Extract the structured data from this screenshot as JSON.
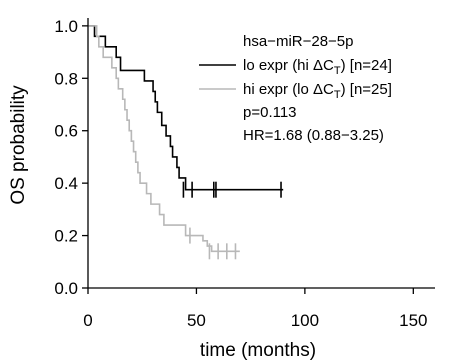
{
  "chart_data": {
    "type": "line",
    "subtype": "kaplan-meier",
    "xlabel": "time (months)",
    "ylabel": "OS probability",
    "xlim": [
      0,
      160
    ],
    "ylim": [
      0,
      1.03
    ],
    "x_ticks": [
      0,
      50,
      100,
      150
    ],
    "y_ticks": [
      0.0,
      0.2,
      0.4,
      0.6,
      0.8,
      1.0
    ],
    "x_tick_labels": [
      "0",
      "50",
      "100",
      "150"
    ],
    "y_tick_labels": [
      "0.0",
      "0.2",
      "0.4",
      "0.6",
      "0.8",
      "1.0"
    ],
    "grid": false,
    "legend_position": "top-right",
    "legend": {
      "title": "hsa−miR−28−5p",
      "entries": [
        {
          "prefix": "lo expr (hi ΔC",
          "sub": "T",
          "suffix": ") [n=24]"
        },
        {
          "prefix": "hi expr (lo ΔC",
          "sub": "T",
          "suffix": ") [n=25]"
        }
      ],
      "notes": [
        "p=0.113",
        "HR=1.68 (0.88−3.25)"
      ]
    },
    "series": [
      {
        "name": "lo expr (hi ΔCT) [n=24]",
        "color": "#000000",
        "steps": [
          [
            0,
            1.0
          ],
          [
            3,
            0.96
          ],
          [
            8,
            0.92
          ],
          [
            13,
            0.88
          ],
          [
            15,
            0.83
          ],
          [
            26,
            0.79
          ],
          [
            30,
            0.75
          ],
          [
            31,
            0.71
          ],
          [
            32,
            0.67
          ],
          [
            34,
            0.62
          ],
          [
            36,
            0.58
          ],
          [
            38,
            0.54
          ],
          [
            39,
            0.5
          ],
          [
            41,
            0.46
          ],
          [
            42,
            0.42
          ],
          [
            45,
            0.375
          ],
          [
            90,
            0.375
          ]
        ],
        "censors": [
          [
            44,
            0.375
          ],
          [
            48,
            0.375
          ],
          [
            58,
            0.375
          ],
          [
            59,
            0.375
          ],
          [
            89,
            0.375
          ]
        ]
      },
      {
        "name": "hi expr (lo ΔCT) [n=25]",
        "color": "#b8b8b8",
        "steps": [
          [
            0,
            1.0
          ],
          [
            4,
            0.96
          ],
          [
            5,
            0.92
          ],
          [
            7,
            0.88
          ],
          [
            11,
            0.84
          ],
          [
            13,
            0.8
          ],
          [
            14,
            0.76
          ],
          [
            16,
            0.72
          ],
          [
            17,
            0.68
          ],
          [
            18,
            0.64
          ],
          [
            19,
            0.6
          ],
          [
            20,
            0.56
          ],
          [
            21,
            0.52
          ],
          [
            22,
            0.48
          ],
          [
            23,
            0.44
          ],
          [
            24,
            0.4
          ],
          [
            27,
            0.36
          ],
          [
            29,
            0.32
          ],
          [
            33,
            0.28
          ],
          [
            35,
            0.24
          ],
          [
            45,
            0.2
          ],
          [
            53,
            0.18
          ],
          [
            55,
            0.16
          ],
          [
            57,
            0.14
          ],
          [
            70,
            0.14
          ]
        ],
        "censors": [
          [
            47,
            0.2
          ],
          [
            56,
            0.14
          ],
          [
            60,
            0.14
          ],
          [
            64,
            0.14
          ],
          [
            68,
            0.14
          ]
        ]
      }
    ]
  }
}
